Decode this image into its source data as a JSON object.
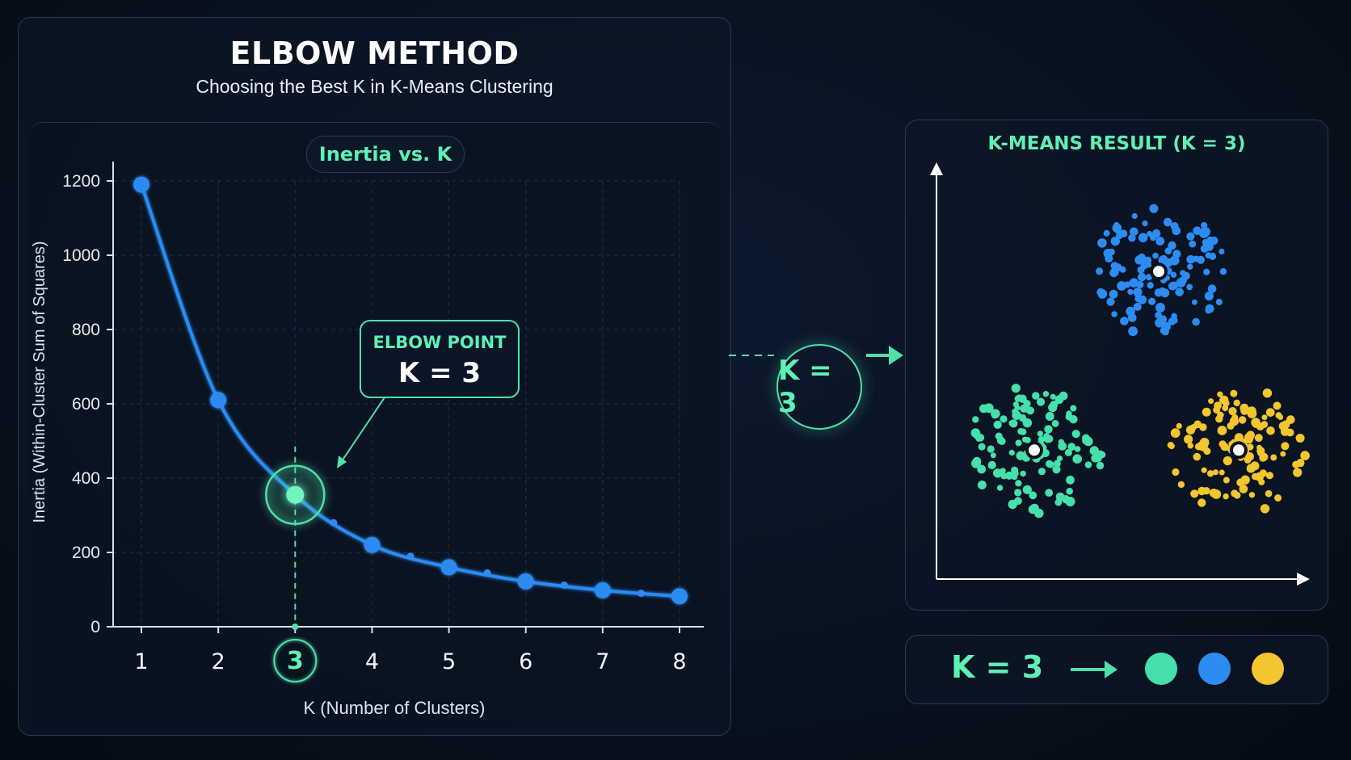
{
  "header": {
    "title": "ELBOW METHOD",
    "subtitle": "Choosing the Best K in K-Means Clustering"
  },
  "chart_data": [
    {
      "type": "line",
      "title": "Inertia vs. K",
      "xlabel": "K (Number of Clusters)",
      "ylabel": "Inertia (Within-Cluster Sum of Squares)",
      "x": [
        1,
        2,
        3,
        4,
        5,
        6,
        7,
        8
      ],
      "values": [
        1190,
        610,
        355,
        220,
        160,
        122,
        98,
        82
      ],
      "minor_x": [
        3.5,
        4.5,
        5.5,
        6.5,
        7.5
      ],
      "minor_values": [
        280,
        190,
        145,
        112,
        90
      ],
      "xlim": [
        0.75,
        8
      ],
      "ylim": [
        0,
        1200
      ],
      "yticks": [
        0,
        200,
        400,
        600,
        800,
        1000,
        1200
      ],
      "xticks": [
        1,
        2,
        3,
        4,
        5,
        6,
        7,
        8
      ],
      "grid": true,
      "highlight_x": 3,
      "annotation": {
        "label": "ELBOW POINT",
        "value": "K = 3"
      }
    },
    {
      "type": "scatter",
      "title": "K-MEANS RESULT (K = 3)",
      "clusters": [
        {
          "color": "#2c8cf2",
          "center": [
            2.5,
            3.1
          ]
        },
        {
          "color": "#45e0ac",
          "center": [
            1.1,
            1.3
          ]
        },
        {
          "color": "#f3c52e",
          "center": [
            3.4,
            1.3
          ]
        }
      ],
      "xlim": [
        0,
        4.2
      ],
      "ylim": [
        0,
        4.2
      ]
    }
  ],
  "connector": {
    "label": "K = 3"
  },
  "summary": {
    "k_label": "K = 3"
  },
  "colors": {
    "accent": "#5ff0b4",
    "line": "#2c8cf2",
    "teal": "#45e0ac",
    "blue": "#2c8cf2",
    "yellow": "#f3c52e"
  }
}
